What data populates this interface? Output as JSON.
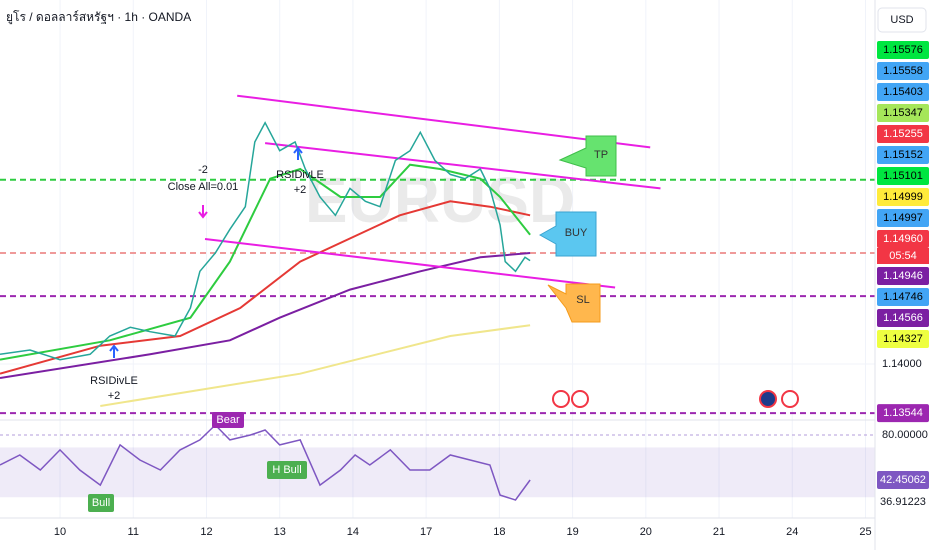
{
  "chart_data": [
    {
      "type": "line",
      "title": "ยูโร / ดอลลาร์สหรัฐฯ · 1h · OANDA",
      "watermark": "EURUSD",
      "currency": "USD",
      "color": "#26a69a",
      "x": [
        -0.82,
        -0.41,
        0.0,
        0.41,
        0.68,
        0.96,
        1.23,
        1.57,
        1.78,
        1.91,
        2.12,
        2.32,
        2.53,
        2.66,
        2.8,
        3.0,
        3.21,
        3.35,
        3.55,
        3.76,
        3.96,
        4.17,
        4.37,
        4.58,
        4.78,
        4.92,
        5.12,
        5.33,
        5.53,
        5.74,
        5.87,
        6.01,
        6.08,
        6.22,
        6.35,
        6.42
      ],
      "values": [
        1.1409,
        1.1413,
        1.1404,
        1.1409,
        1.1426,
        1.1434,
        1.143,
        1.1426,
        1.1452,
        1.1486,
        1.1503,
        1.1525,
        1.1546,
        1.1606,
        1.1624,
        1.1598,
        1.1606,
        1.1581,
        1.1555,
        1.1538,
        1.1563,
        1.1551,
        1.1546,
        1.1589,
        1.1598,
        1.1615,
        1.1589,
        1.1576,
        1.1572,
        1.1581,
        1.1563,
        1.1529,
        1.1495,
        1.1486,
        1.1499,
        1.1496
      ],
      "lines": [
        {
          "color": "#e53935",
          "x": [
            -0.82,
            0.55,
            1.64,
            2.46,
            3.28,
            4.64,
            5.33,
            5.87,
            6.42
          ],
          "values": [
            1.1391,
            1.1417,
            1.1426,
            1.1452,
            1.1495,
            1.1538,
            1.1551,
            1.1546,
            1.1538
          ]
        },
        {
          "color": "#7b1fa2",
          "x": [
            -0.82,
            1.23,
            2.32,
            3.0,
            3.96,
            4.92,
            5.74,
            6.42
          ],
          "values": [
            1.1387,
            1.1409,
            1.1422,
            1.1443,
            1.1469,
            1.1486,
            1.1499,
            1.1503
          ]
        },
        {
          "color": "#f0e68c",
          "x": [
            0.55,
            3.28,
            5.33,
            6.42
          ],
          "values": [
            1.1361,
            1.1391,
            1.1426,
            1.1436
          ]
        },
        {
          "color": "#2ecc40",
          "x": [
            -0.82,
            0.68,
            1.78,
            2.32,
            2.87,
            3.28,
            3.83,
            4.37,
            4.78,
            5.19,
            5.74,
            6.01,
            6.42
          ],
          "values": [
            1.1404,
            1.1422,
            1.1443,
            1.1495,
            1.1572,
            1.1581,
            1.1555,
            1.1555,
            1.1585,
            1.1581,
            1.1572,
            1.1555,
            1.152
          ]
        },
        {
          "color": "#e91ee3",
          "x": [
            2.42,
            8.06
          ],
          "values": [
            1.1649,
            1.1601
          ]
        },
        {
          "color": "#e91ee3",
          "x": [
            2.8,
            8.2
          ],
          "values": [
            1.1605,
            1.1563
          ]
        },
        {
          "color": "#e91ee3",
          "x": [
            1.98,
            7.58
          ],
          "values": [
            1.1516,
            1.1471
          ]
        }
      ],
      "hlines": [
        {
          "value": 1.1571,
          "color": "#2ecc40"
        },
        {
          "value": 1.1463,
          "color": "#9c27b0"
        },
        {
          "value": 1.1503,
          "color": "#ef9a9a"
        }
      ],
      "level": {
        "value": 1.13544,
        "label": "1.13544",
        "color": "#9c27b0"
      },
      "xlim": [
        -0.82,
        11.13
      ],
      "ylim": [
        1.1348,
        1.171
      ],
      "xticks": [
        {
          "value": 0,
          "label": "10"
        },
        {
          "value": 1,
          "label": "11"
        },
        {
          "value": 2,
          "label": "12"
        },
        {
          "value": 3,
          "label": "13"
        },
        {
          "value": 4,
          "label": "14"
        },
        {
          "value": 5,
          "label": "17"
        },
        {
          "value": 6,
          "label": "18"
        },
        {
          "value": 7,
          "label": "19"
        },
        {
          "value": 8,
          "label": "20"
        },
        {
          "value": 9,
          "label": "21"
        },
        {
          "value": 10,
          "label": "24"
        },
        {
          "value": 11,
          "label": "25"
        }
      ],
      "yticks": [
        {
          "value": 1.14,
          "label": "1.14000"
        }
      ],
      "badges": [
        {
          "label": "1.15576",
          "color": "#00e640",
          "text_color": "#000000"
        },
        {
          "label": "1.15558",
          "color": "#42a5f5",
          "text_color": "#000000"
        },
        {
          "label": "1.15403",
          "color": "#42a5f5",
          "text_color": "#000000"
        },
        {
          "label": "1.15347",
          "color": "#a5e65a",
          "text_color": "#000000"
        },
        {
          "label": "1.15255",
          "color": "#f23645",
          "text_color": "#ffffff"
        },
        {
          "label": "1.15152",
          "color": "#42a5f5",
          "text_color": "#000000"
        },
        {
          "label": "1.15101",
          "color": "#00e640",
          "text_color": "#000000"
        },
        {
          "label": "1.14999",
          "color": "#ffeb3b",
          "text_color": "#000000"
        },
        {
          "label": "1.14997",
          "color": "#42a5f5",
          "text_color": "#000000"
        },
        {
          "label": "1.14960",
          "color": "#f23645",
          "text_color": "#ffffff"
        },
        {
          "label": "1.14946",
          "color": "#7b1fa2",
          "text_color": "#ffffff"
        },
        {
          "label": "1.14746",
          "color": "#42a5f5",
          "text_color": "#000000"
        },
        {
          "label": "1.14566",
          "color": "#7b1fa2",
          "text_color": "#ffffff"
        },
        {
          "label": "1.14327",
          "color": "#eeff41",
          "text_color": "#000000"
        }
      ],
      "countdown": "05:54",
      "annotations": {
        "tp": "TP",
        "buy": "BUY",
        "sl": "SL",
        "minus": "-2",
        "close_all": "Close All=0.01",
        "div1": "RSIDivLE",
        "div1_qty": "+2",
        "div2": "RSIDivLE",
        "div2_qty": "+2"
      }
    },
    {
      "type": "line",
      "color": "#7e57c2",
      "x": [
        -0.82,
        -0.55,
        -0.27,
        0.0,
        0.27,
        0.55,
        0.82,
        1.09,
        1.37,
        1.64,
        1.91,
        2.12,
        2.32,
        2.6,
        2.8,
        3.0,
        3.28,
        3.55,
        3.83,
        4.03,
        4.23,
        4.51,
        4.78,
        5.05,
        5.33,
        5.6,
        5.87,
        6.01,
        6.22,
        6.42
      ],
      "values": [
        60.7,
        67.1,
        57.5,
        70.4,
        57.5,
        47.8,
        73.6,
        63.9,
        57.5,
        70.4,
        76.8,
        86.4,
        76.8,
        80,
        83.2,
        73.6,
        76.8,
        47.8,
        57.5,
        67.1,
        60.7,
        70.4,
        57.5,
        57.5,
        67.1,
        63.9,
        60.7,
        41.4,
        38.2,
        51.1
      ],
      "xlim": [
        -0.82,
        11.13
      ],
      "ylim": [
        28.6,
        89.6
      ],
      "band": [
        40,
        72
      ],
      "yticks": [
        {
          "value": 80,
          "label": "80.00000"
        }
      ],
      "badges": [
        {
          "label": "42.45062",
          "color": "#7e57c2",
          "text_color": "#ffffff"
        },
        {
          "label": "36.91223",
          "color": "#ffffff",
          "text_color": "#131722"
        }
      ],
      "annotations": {
        "bear": "Bear",
        "h_bull": "H Bull",
        "bull": "Bull"
      }
    }
  ]
}
